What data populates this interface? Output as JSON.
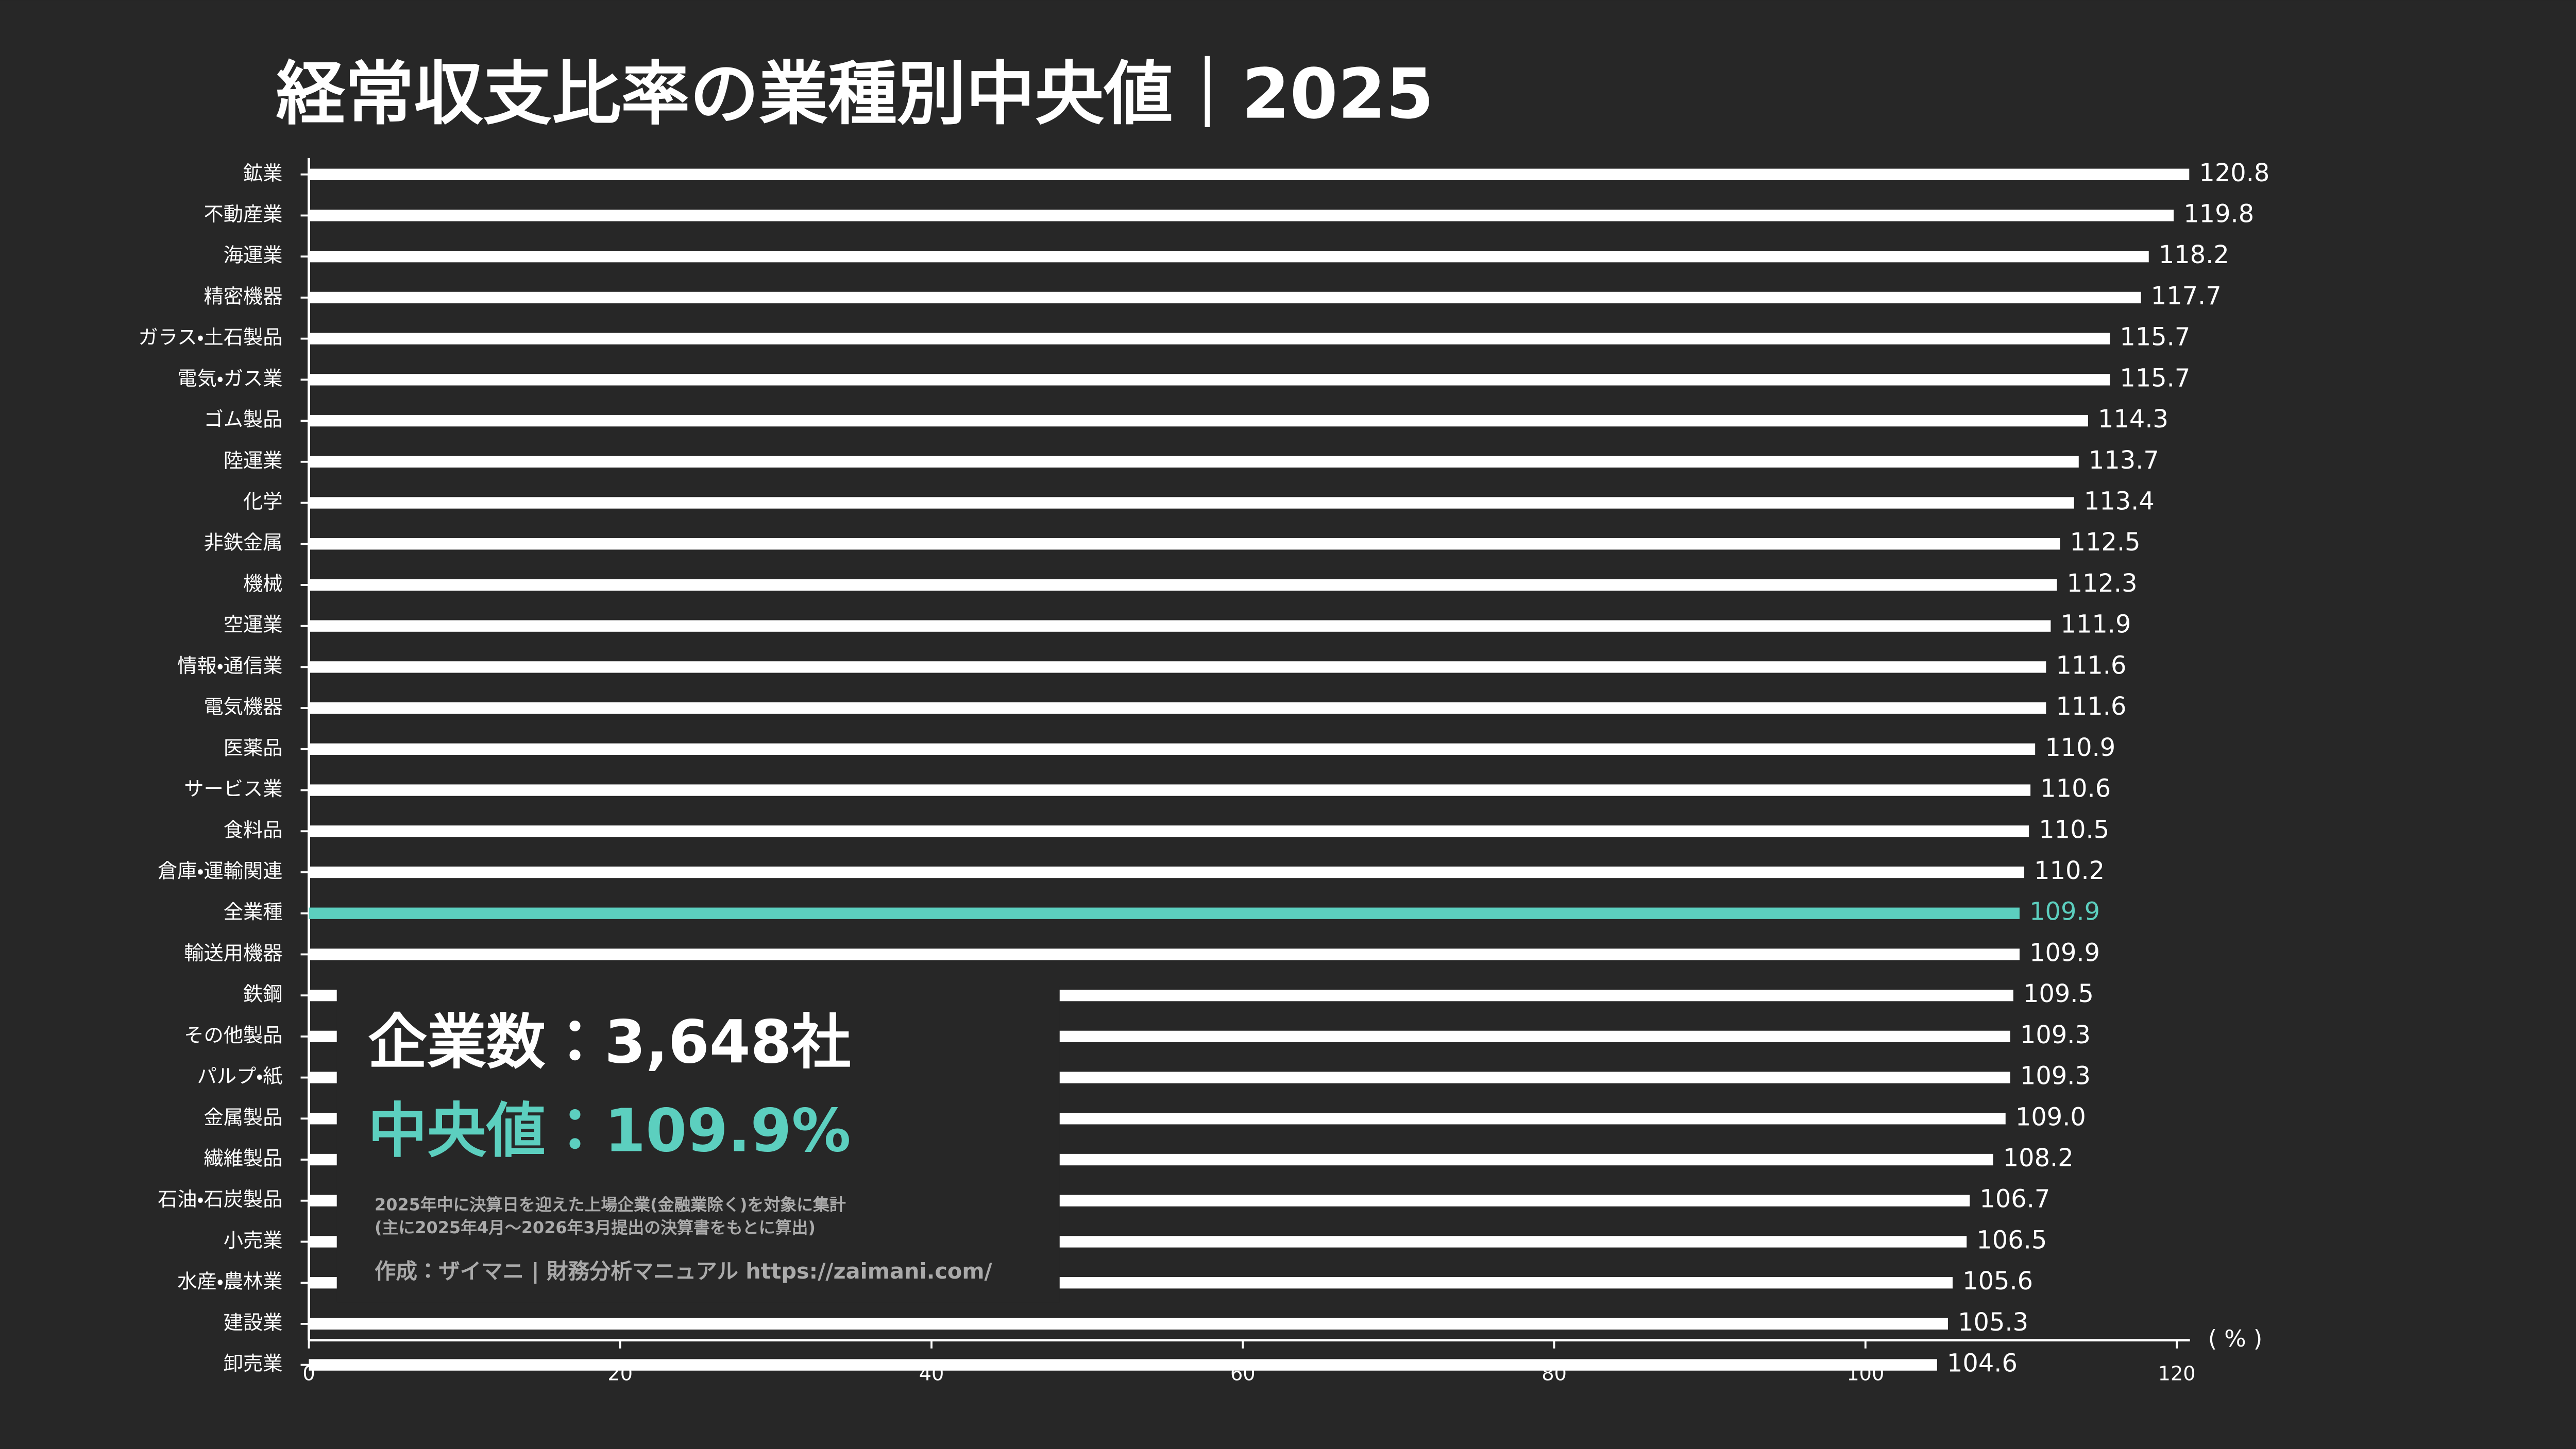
{
  "chart_data": {
    "type": "barh",
    "title": "経常収支比率の業種別中央値｜2025",
    "categories": [
      "鉱業",
      "不動産業",
      "海運業",
      "精密機器",
      "ガラス・土石製品",
      "電気・ガス業",
      "ゴム製品",
      "陸運業",
      "化学",
      "非鉄金属",
      "機械",
      "空運業",
      "情報・通信業",
      "電気機器",
      "医薬品",
      "サービス業",
      "食料品",
      "倉庫・運輸関連",
      "全業種",
      "輸送用機器",
      "鉄鋼",
      "その他製品",
      "パルプ・紙",
      "金属製品",
      "繊維製品",
      "石油・石炭製品",
      "小売業",
      "水産・農林業",
      "建設業",
      "卸売業"
    ],
    "values": [
      120.8,
      119.8,
      118.2,
      117.7,
      115.7,
      115.7,
      114.3,
      113.7,
      113.4,
      112.5,
      112.3,
      111.9,
      111.6,
      111.6,
      110.9,
      110.6,
      110.5,
      110.2,
      109.9,
      109.9,
      109.5,
      109.3,
      109.3,
      109.0,
      108.2,
      106.7,
      106.5,
      105.6,
      105.3,
      104.6
    ],
    "value_labels": [
      "120.8",
      "119.8",
      "118.2",
      "117.7",
      "115.7",
      "115.7",
      "114.3",
      "113.7",
      "113.4",
      "112.5",
      "112.3",
      "111.9",
      "111.6",
      "111.6",
      "110.9",
      "110.6",
      "110.5",
      "110.2",
      "109.9",
      "109.9",
      "109.5",
      "109.3",
      "109.3",
      "109.0",
      "108.2",
      "106.7",
      "106.5",
      "105.6",
      "105.3",
      "104.6"
    ],
    "colors": [
      "#ffffff",
      "#ffffff",
      "#ffffff",
      "#ffffff",
      "#ffffff",
      "#ffffff",
      "#ffffff",
      "#ffffff",
      "#ffffff",
      "#ffffff",
      "#ffffff",
      "#ffffff",
      "#ffffff",
      "#ffffff",
      "#ffffff",
      "#ffffff",
      "#ffffff",
      "#ffffff",
      "#5ccfbf",
      "#ffffff",
      "#ffffff",
      "#ffffff",
      "#ffffff",
      "#ffffff",
      "#ffffff",
      "#ffffff",
      "#ffffff",
      "#ffffff",
      "#ffffff",
      "#ffffff"
    ],
    "x_axis_label": "( % )",
    "xlim": [
      0,
      120
    ],
    "xticks": [
      0,
      20,
      40,
      60,
      80,
      100,
      120
    ],
    "annotations": {
      "company_count": "企業数：3,648社",
      "median": "中央値：109.9%",
      "note_1": "2025年中に決算日を迎えた上場企業(金融業除く)を対象に集計",
      "note_2": "(主に2025年4月〜2026年3月提出の決算書をもとに算出)",
      "credit": "作成：ザイマニ | 財務分析マニュアル https://zaimani.com/"
    }
  }
}
